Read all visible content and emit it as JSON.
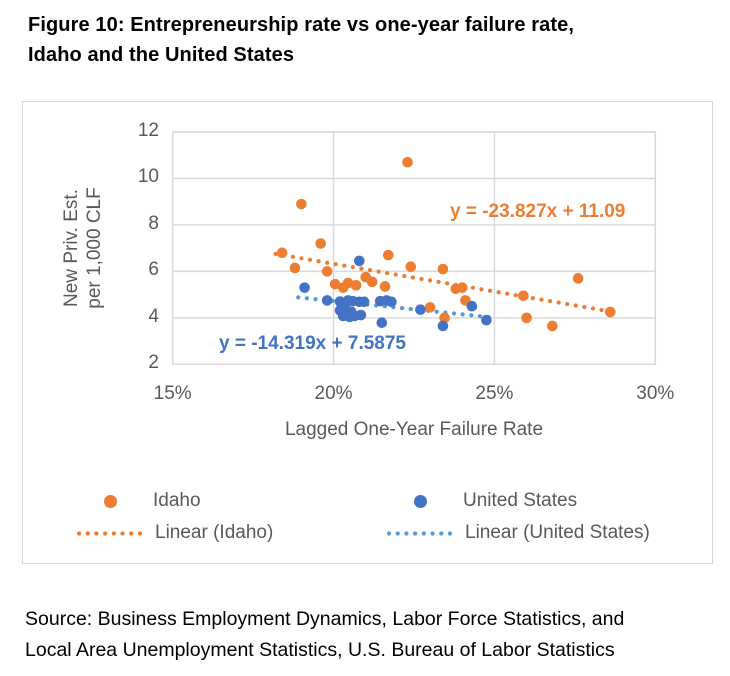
{
  "title_line1": "Figure 10: Entrepreneurship rate vs one-year failure rate,",
  "title_line2": "Idaho and the United States",
  "source_line1": "Source: Business Employment Dynamics, Labor Force Statistics, and",
  "source_line2": "Local Area Unemployment Statistics, U.S. Bureau of Labor Statistics",
  "colors": {
    "idaho_orange": "#ED7D31",
    "us_blue": "#4472C4",
    "us_trend_blue": "#5B9BD5",
    "gridline": "#D9D9D9",
    "axis_text": "#595959",
    "title_text": "#000000"
  },
  "chart_data": {
    "type": "scatter",
    "xlabel": "Lagged One-Year Failure Rate",
    "ylabel_line1": "New Priv. Est.",
    "ylabel_line2": "per 1,000 CLF",
    "xlim": [
      15,
      30
    ],
    "ylim": [
      2,
      12
    ],
    "grid": true,
    "x_ticks": [
      {
        "value": 15,
        "label": "15%"
      },
      {
        "value": 20,
        "label": "20%"
      },
      {
        "value": 25,
        "label": "25%"
      },
      {
        "value": 30,
        "label": "30%"
      }
    ],
    "y_ticks": [
      {
        "value": 12,
        "label": "12"
      },
      {
        "value": 10,
        "label": "10"
      },
      {
        "value": 8,
        "label": "8"
      },
      {
        "value": 6,
        "label": "6"
      },
      {
        "value": 4,
        "label": "4"
      },
      {
        "value": 2,
        "label": "2"
      }
    ],
    "legend": {
      "position": "bottom",
      "idaho_label": "Idaho",
      "us_label": "United States",
      "linear_idaho_label": "Linear (Idaho)",
      "linear_us_label": "Linear (United States)"
    },
    "series": [
      {
        "id": "idaho",
        "name": "Idaho",
        "color": "#ED7D31",
        "points": [
          [
            18.4,
            6.8
          ],
          [
            18.8,
            6.15
          ],
          [
            19.0,
            8.9
          ],
          [
            19.6,
            7.2
          ],
          [
            19.8,
            6.0
          ],
          [
            20.05,
            5.45
          ],
          [
            20.3,
            5.3
          ],
          [
            20.45,
            5.5
          ],
          [
            20.7,
            5.4
          ],
          [
            21.0,
            5.75
          ],
          [
            21.2,
            5.55
          ],
          [
            21.6,
            5.35
          ],
          [
            21.7,
            6.7
          ],
          [
            22.3,
            10.7
          ],
          [
            22.4,
            6.2
          ],
          [
            23.0,
            4.45
          ],
          [
            23.4,
            6.1
          ],
          [
            23.45,
            4.0
          ],
          [
            23.8,
            5.25
          ],
          [
            24.0,
            5.3
          ],
          [
            24.1,
            4.75
          ],
          [
            25.9,
            4.95
          ],
          [
            26.0,
            4.0
          ],
          [
            26.8,
            3.65
          ],
          [
            27.6,
            5.7
          ],
          [
            28.6,
            4.25
          ]
        ],
        "trend": {
          "label": "y = -23.827x + 11.09",
          "slope": -23.827,
          "intercept": 11.09,
          "x_start": 18.2,
          "x_end": 28.7,
          "color": "#ED7D31"
        }
      },
      {
        "id": "united-states",
        "name": "United States",
        "color": "#4472C4",
        "points": [
          [
            19.1,
            5.3
          ],
          [
            19.8,
            4.75
          ],
          [
            20.2,
            4.7
          ],
          [
            20.2,
            4.32
          ],
          [
            20.3,
            4.08
          ],
          [
            20.35,
            4.45
          ],
          [
            20.4,
            4.22
          ],
          [
            20.45,
            4.75
          ],
          [
            20.5,
            4.04
          ],
          [
            20.55,
            4.26
          ],
          [
            20.6,
            4.72
          ],
          [
            20.65,
            4.08
          ],
          [
            20.8,
            4.69
          ],
          [
            20.8,
            6.45
          ],
          [
            20.85,
            4.12
          ],
          [
            20.95,
            4.69
          ],
          [
            21.45,
            4.72
          ],
          [
            21.5,
            3.79
          ],
          [
            21.65,
            4.75
          ],
          [
            21.8,
            4.69
          ],
          [
            22.7,
            4.35
          ],
          [
            23.4,
            3.65
          ],
          [
            24.3,
            4.5
          ],
          [
            24.75,
            3.9
          ]
        ],
        "trend": {
          "label": "y = -14.319x + 7.5875",
          "slope": -14.319,
          "intercept": 7.5875,
          "x_start": 18.9,
          "x_end": 24.9,
          "color": "#5B9BD5"
        }
      }
    ]
  }
}
